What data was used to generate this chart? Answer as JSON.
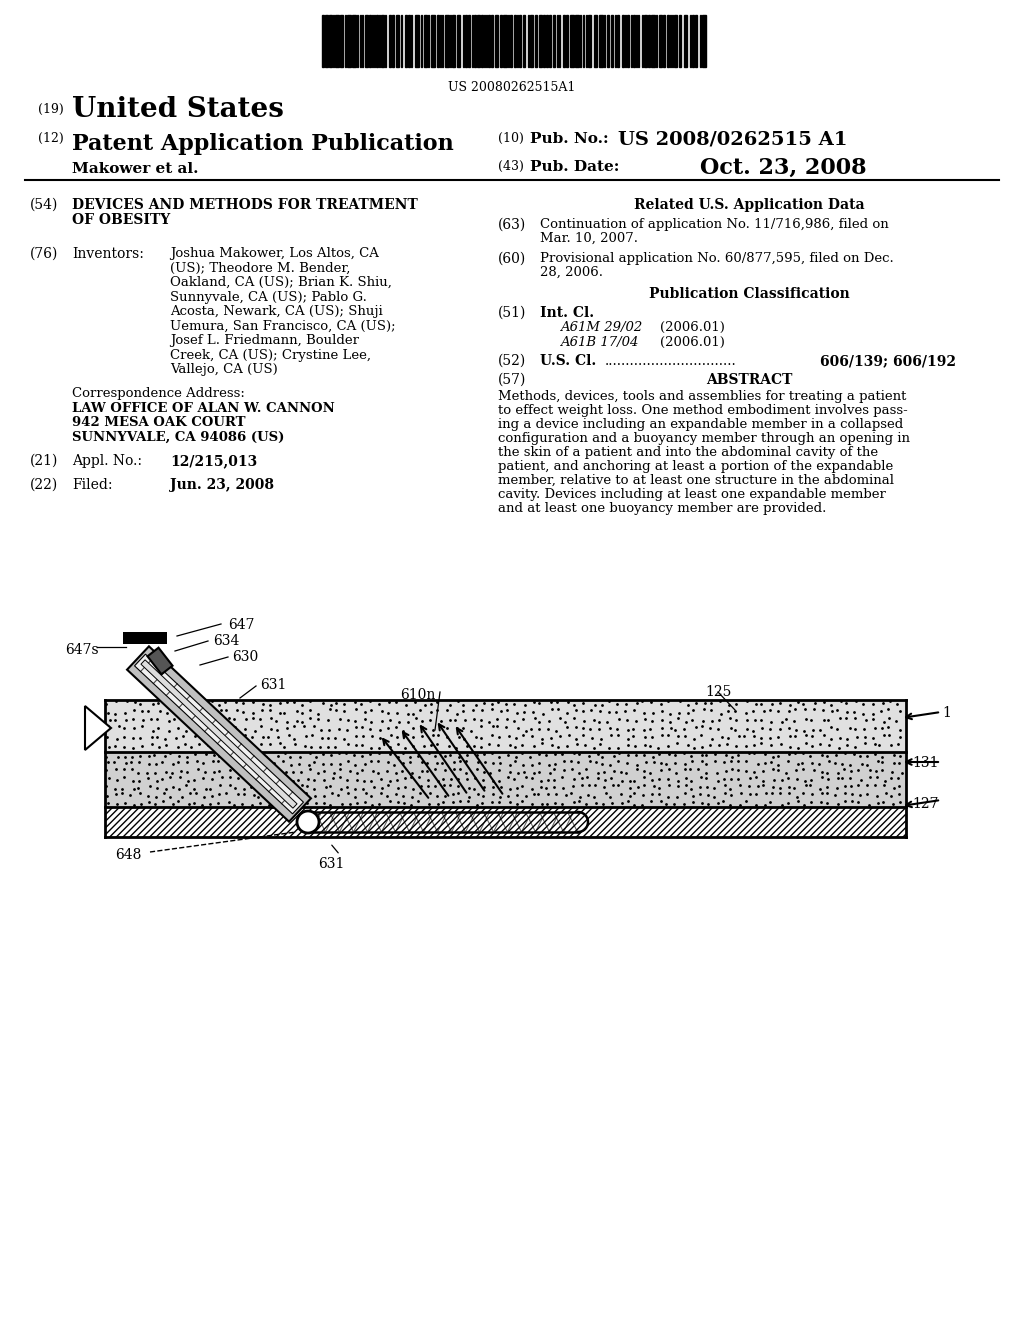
{
  "bg_color": "#ffffff",
  "barcode_number": "US 20080262515A1",
  "nation": "United States",
  "doc_type": "Patent Application Publication",
  "authors": "Makower et al.",
  "pub_no_label": "Pub. No.:",
  "pub_no": "US 2008/0262515 A1",
  "pub_date_label": "Pub. Date:",
  "pub_date": "Oct. 23, 2008",
  "patent_title_1": "DEVICES AND METHODS FOR TREATMENT",
  "patent_title_2": "OF OBESITY",
  "inventors_label": "Inventors:",
  "inventors_lines": [
    "Joshua Makower, Los Altos, CA",
    "(US); Theodore M. Bender,",
    "Oakland, CA (US); Brian K. Shiu,",
    "Sunnyvale, CA (US); Pablo G.",
    "Acosta, Newark, CA (US); Shuji",
    "Uemura, San Francisco, CA (US);",
    "Josef L. Friedmann, Boulder",
    "Creek, CA (US); Crystine Lee,",
    "Vallejo, CA (US)"
  ],
  "corr_label": "Correspondence Address:",
  "corr_lines": [
    "LAW OFFICE OF ALAN W. CANNON",
    "942 MESA OAK COURT",
    "SUNNYVALE, CA 94086 (US)"
  ],
  "appl_label": "Appl. No.:",
  "appl_no": "12/215,013",
  "filed_label": "Filed:",
  "filed_date": "Jun. 23, 2008",
  "related_header": "Related U.S. Application Data",
  "cont_label": "(63)",
  "cont_lines": [
    "Continuation of application No. 11/716,986, filed on",
    "Mar. 10, 2007."
  ],
  "prov_label": "(60)",
  "prov_lines": [
    "Provisional application No. 60/877,595, filed on Dec.",
    "28, 2006."
  ],
  "pub_class_header": "Publication Classification",
  "int_cl_label": "Int. Cl.",
  "int_cl_1": "A61M 29/02",
  "int_cl_1_date": "(2006.01)",
  "int_cl_2": "A61B 17/04",
  "int_cl_2_date": "(2006.01)",
  "us_cl_label": "U.S. Cl.",
  "us_cl_val": "606/139; 606/192",
  "abstract_label": "ABSTRACT",
  "abstract_lines": [
    "Methods, devices, tools and assemblies for treating a patient",
    "to effect weight loss. One method embodiment involves pass-",
    "ing a device including an expandable member in a collapsed",
    "configuration and a buoyancy member through an opening in",
    "the skin of a patient and into the abdominal cavity of the",
    "patient, and anchoring at least a portion of the expandable",
    "member, relative to at least one structure in the abdominal",
    "cavity. Devices including at least one expandable member",
    "and at least one buoyancy member are provided."
  ]
}
